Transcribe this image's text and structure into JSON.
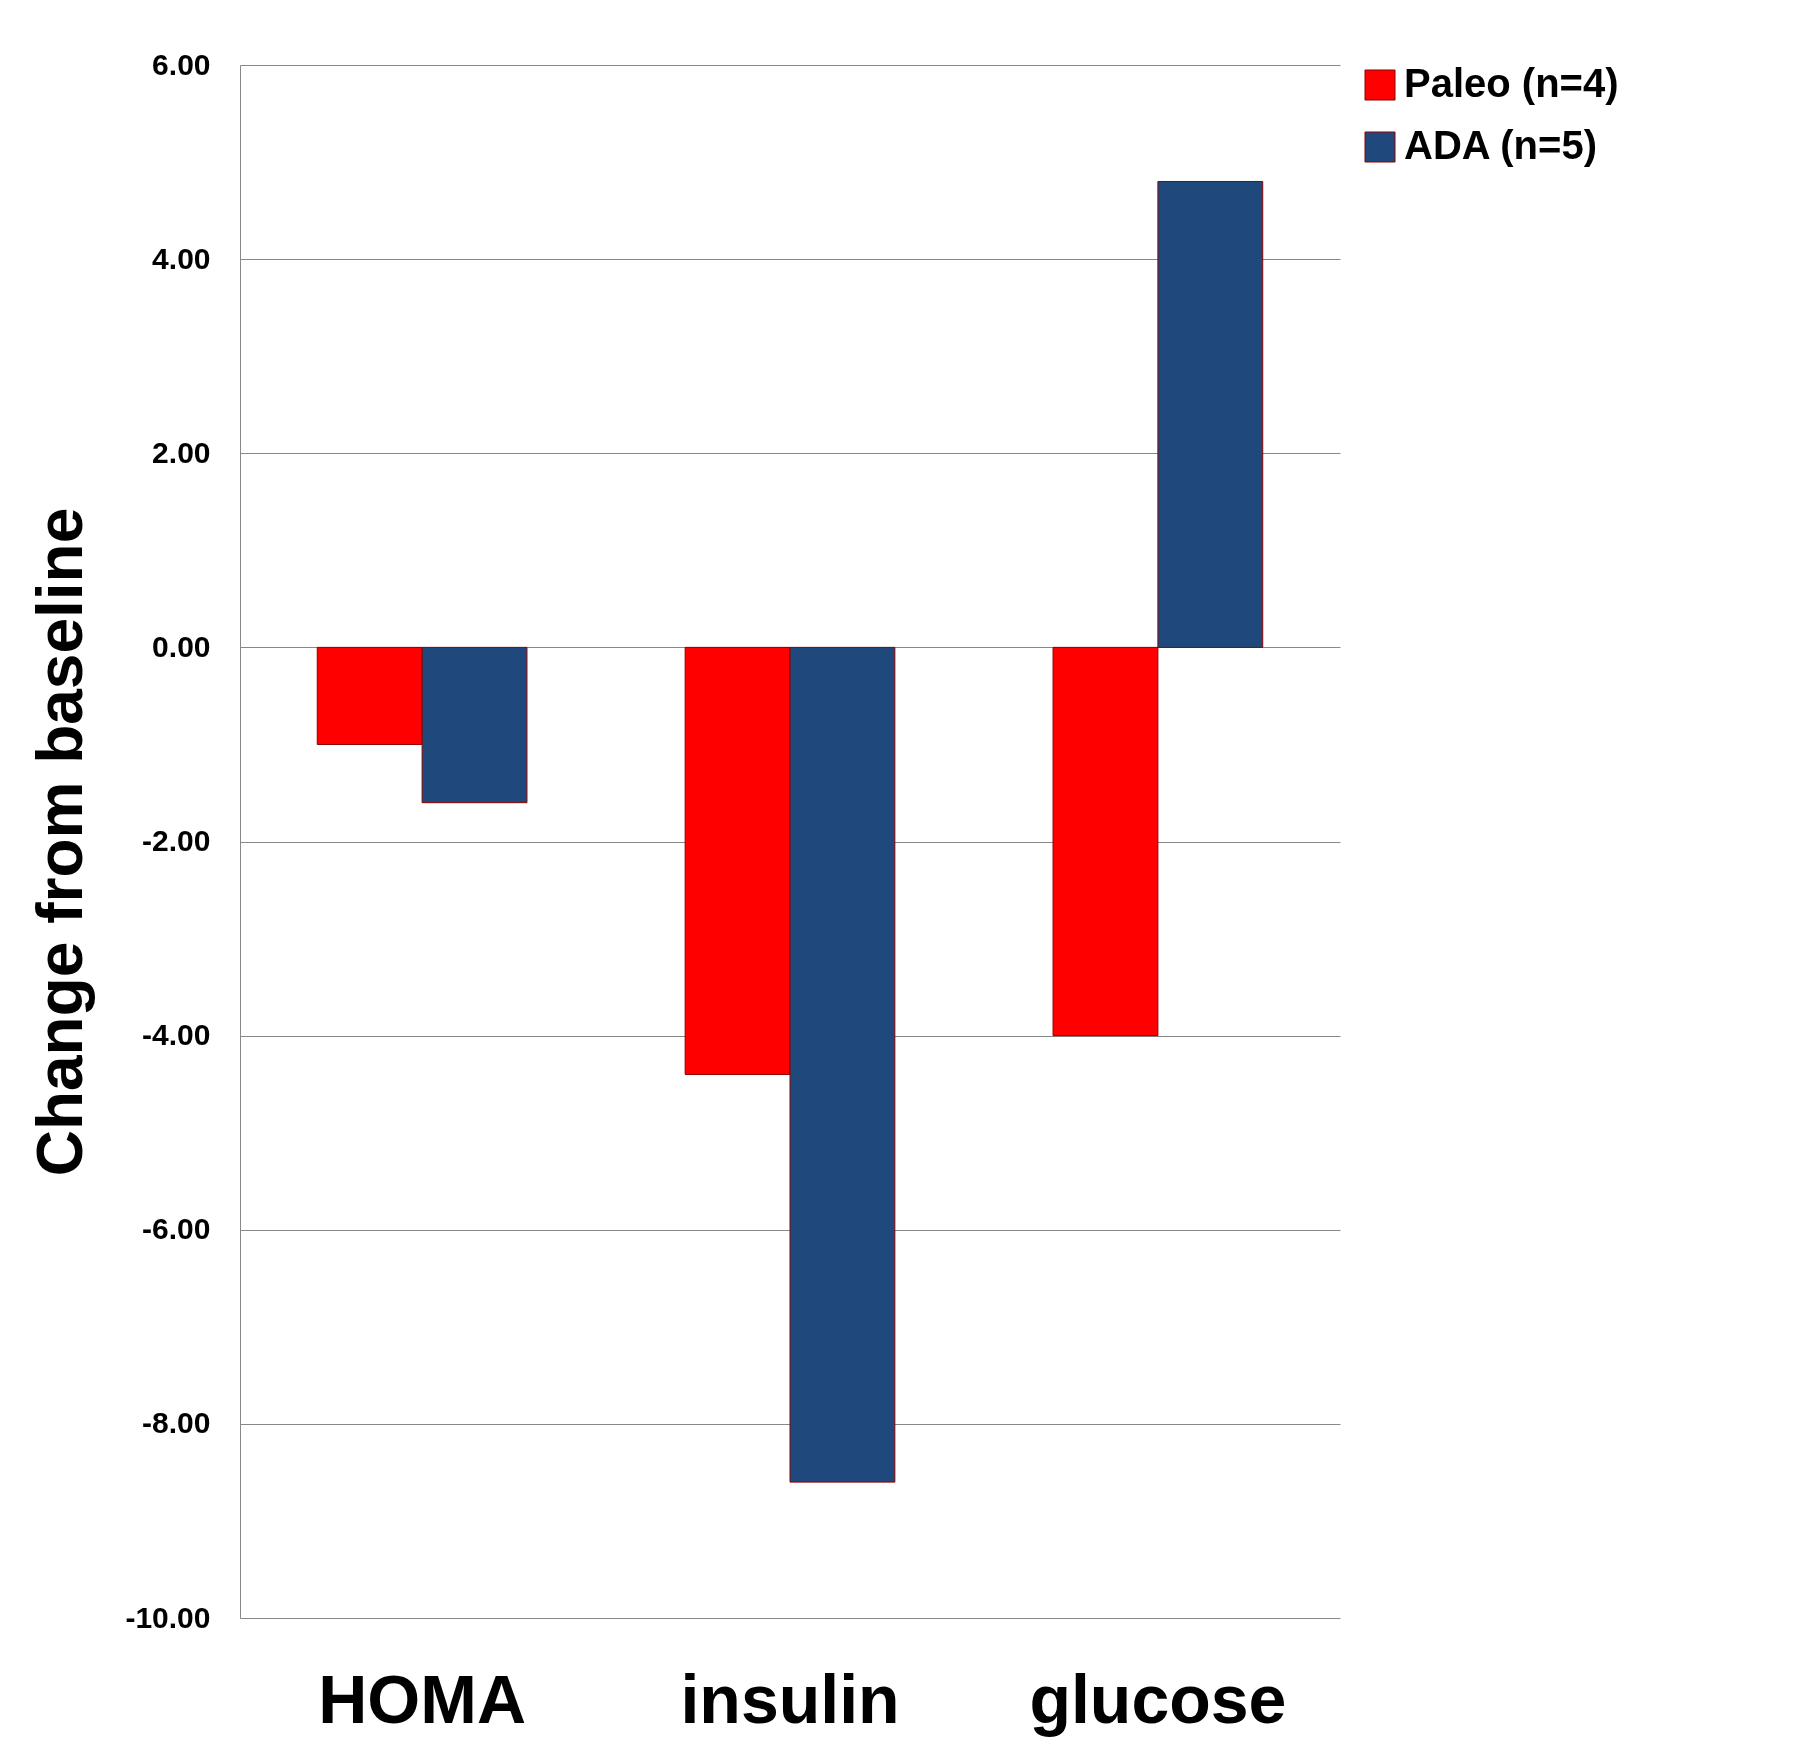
{
  "chart_data": {
    "type": "bar",
    "ylabel": "Change from baseline",
    "categories": [
      "HOMA",
      "insulin",
      "glucose"
    ],
    "series": [
      {
        "name": "Paleo (n=4)",
        "color": "#ff0000",
        "values": [
          -1.0,
          -4.4,
          -4.0
        ]
      },
      {
        "name": "ADA (n=5)",
        "color": "#1f497d",
        "values": [
          -1.6,
          -8.6,
          4.8
        ]
      }
    ],
    "ylim": [
      -10,
      6
    ],
    "yticks": [
      {
        "value": -10,
        "label": "-10.00"
      },
      {
        "value": -8,
        "label": "-8.00"
      },
      {
        "value": -6,
        "label": "-6.00"
      },
      {
        "value": -4,
        "label": "-4.00"
      },
      {
        "value": -2,
        "label": "-2.00"
      },
      {
        "value": 0,
        "label": "0.00"
      },
      {
        "value": 2,
        "label": "2.00"
      },
      {
        "value": 4,
        "label": "4.00"
      },
      {
        "value": 6,
        "label": "6.00"
      }
    ],
    "grid": "y",
    "legend": "right"
  }
}
